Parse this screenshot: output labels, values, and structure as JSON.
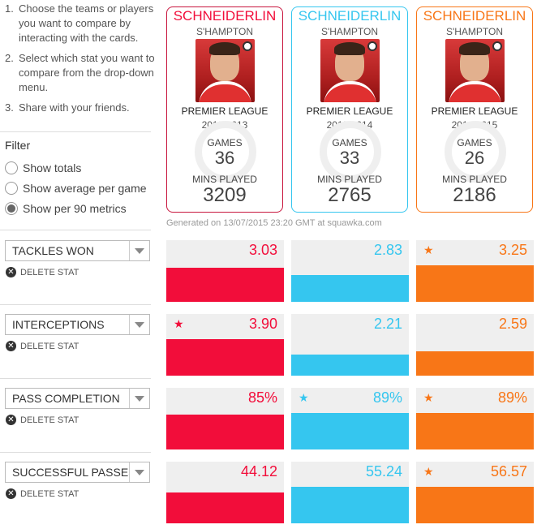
{
  "instructions": [
    {
      "num": "1.",
      "text": "Choose the teams or players you want to compare by interacting with the cards."
    },
    {
      "num": "2.",
      "text": "Select which stat you want to compare from the drop-down menu."
    },
    {
      "num": "3.",
      "text": "Share with your friends."
    }
  ],
  "filter": {
    "title": "Filter",
    "options": [
      {
        "label": "Show totals",
        "selected": false
      },
      {
        "label": "Show average per game",
        "selected": false
      },
      {
        "label": "Show per 90 metrics",
        "selected": true
      }
    ]
  },
  "colors": {
    "red": "#f20d3a",
    "blue": "#35c6ef",
    "orange": "#f87617"
  },
  "cards": [
    {
      "name": "SCHNEIDERLIN",
      "club": "S'HAMPTON",
      "league": "PREMIER LEAGUE",
      "season": "2012/2013",
      "games_label": "GAMES",
      "games": "36",
      "mins_label": "MINS PLAYED",
      "mins": "3209",
      "color": "#f20d3a",
      "border": "#c8163e"
    },
    {
      "name": "SCHNEIDERLIN",
      "club": "S'HAMPTON",
      "league": "PREMIER LEAGUE",
      "season": "2013/2014",
      "games_label": "GAMES",
      "games": "33",
      "mins_label": "MINS PLAYED",
      "mins": "2765",
      "color": "#35c6ef",
      "border": "#35c6ef"
    },
    {
      "name": "SCHNEIDERLIN",
      "club": "S'HAMPTON",
      "league": "PREMIER LEAGUE",
      "season": "2014/2015",
      "games_label": "GAMES",
      "games": "26",
      "mins_label": "MINS PLAYED",
      "mins": "2186",
      "color": "#f87617",
      "border": "#f87617"
    }
  ],
  "generated": "Generated on 13/07/2015 23:20 GMT at squawka.com",
  "delete_label": "DELETE STAT",
  "stats": [
    {
      "label": "TACKLES WON",
      "values": [
        "3.03",
        "2.83",
        "3.25"
      ],
      "fill": [
        0.55,
        0.43,
        0.59
      ],
      "star": [
        false,
        false,
        true
      ]
    },
    {
      "label": "INTERCEPTIONS",
      "values": [
        "3.90",
        "2.21",
        "2.59"
      ],
      "fill": [
        0.59,
        0.34,
        0.39
      ],
      "star": [
        true,
        false,
        false
      ]
    },
    {
      "label": "PASS COMPLETION",
      "values": [
        "85%",
        "89%",
        "89%"
      ],
      "fill": [
        0.57,
        0.59,
        0.59
      ],
      "star": [
        false,
        true,
        true
      ]
    },
    {
      "label": "SUCCESSFUL PASSES",
      "values": [
        "44.12",
        "55.24",
        "56.57"
      ],
      "fill": [
        0.5,
        0.59,
        0.59
      ],
      "star": [
        false,
        false,
        true
      ]
    }
  ]
}
